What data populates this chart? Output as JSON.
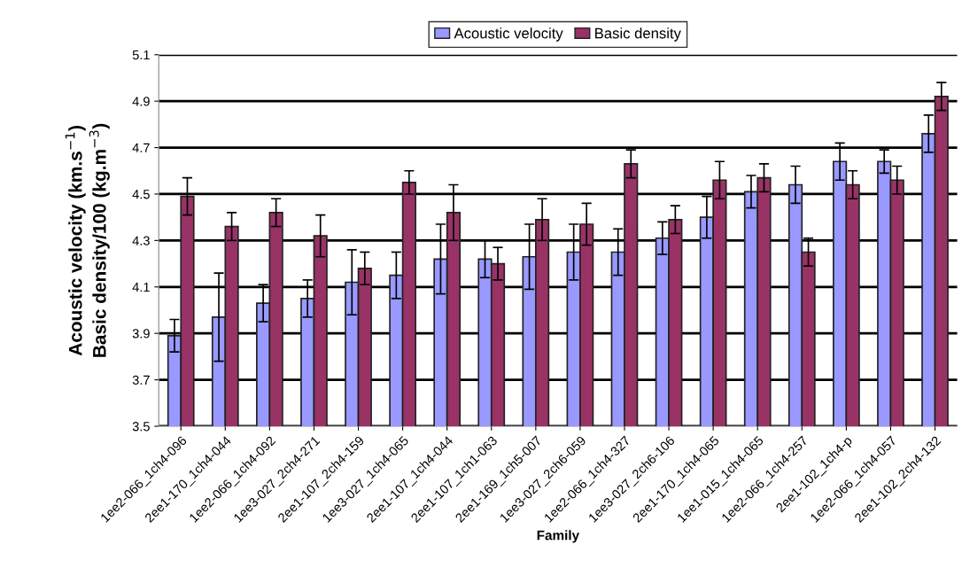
{
  "chart_data": {
    "type": "bar",
    "categories": [
      "1ee2-066_1ch4-096",
      "2ee1-170_1ch4-044",
      "1ee2-066_1ch4-092",
      "1ee3-027_2ch4-271",
      "2ee1-107_2ch4-159",
      "1ee3-027_1ch4-065",
      "2ee1-107_1ch4-044",
      "2ee1-107_1ch1-063",
      "2ee1-169_1ch5-007",
      "1ee3-027_2ch6-059",
      "1ee2-066_1ch4-327",
      "1ee3-027_2ch6-106",
      "2ee1-170_1ch4-065",
      "1ee1-015_1ch4-065",
      "1ee2-066_1ch4-257",
      "2ee1-102_1ch4-p",
      "1ee2-066_1ch4-057",
      "2ee1-102_2ch4-132"
    ],
    "series": [
      {
        "name": "Acoustic velocity",
        "color": "#9999ff",
        "values": [
          3.89,
          3.97,
          4.03,
          4.05,
          4.12,
          4.15,
          4.22,
          4.22,
          4.23,
          4.25,
          4.25,
          4.31,
          4.4,
          4.51,
          4.54,
          4.64,
          4.64,
          4.76
        ],
        "errors": [
          0.07,
          0.19,
          0.08,
          0.08,
          0.14,
          0.1,
          0.15,
          0.08,
          0.14,
          0.12,
          0.1,
          0.07,
          0.09,
          0.07,
          0.08,
          0.08,
          0.05,
          0.08
        ]
      },
      {
        "name": "Basic density",
        "color": "#993366",
        "values": [
          4.49,
          4.36,
          4.42,
          4.32,
          4.18,
          4.55,
          4.42,
          4.2,
          4.39,
          4.37,
          4.63,
          4.39,
          4.56,
          4.57,
          4.25,
          4.54,
          4.56,
          4.92
        ],
        "errors": [
          0.08,
          0.06,
          0.06,
          0.09,
          0.07,
          0.05,
          0.12,
          0.07,
          0.09,
          0.09,
          0.06,
          0.06,
          0.08,
          0.06,
          0.06,
          0.06,
          0.06,
          0.06
        ]
      }
    ],
    "xlabel": "Family",
    "ylabel": "Acoustic velocity (km.s$^{−1}$)\nBasic density/100 (kg.m$^{−3}$)",
    "ylim": [
      3.5,
      5.1
    ],
    "yticks": [
      3.5,
      3.7,
      3.9,
      4.1,
      4.3,
      4.5,
      4.7,
      4.9,
      5.1
    ],
    "grid": "y",
    "legend": "top"
  }
}
